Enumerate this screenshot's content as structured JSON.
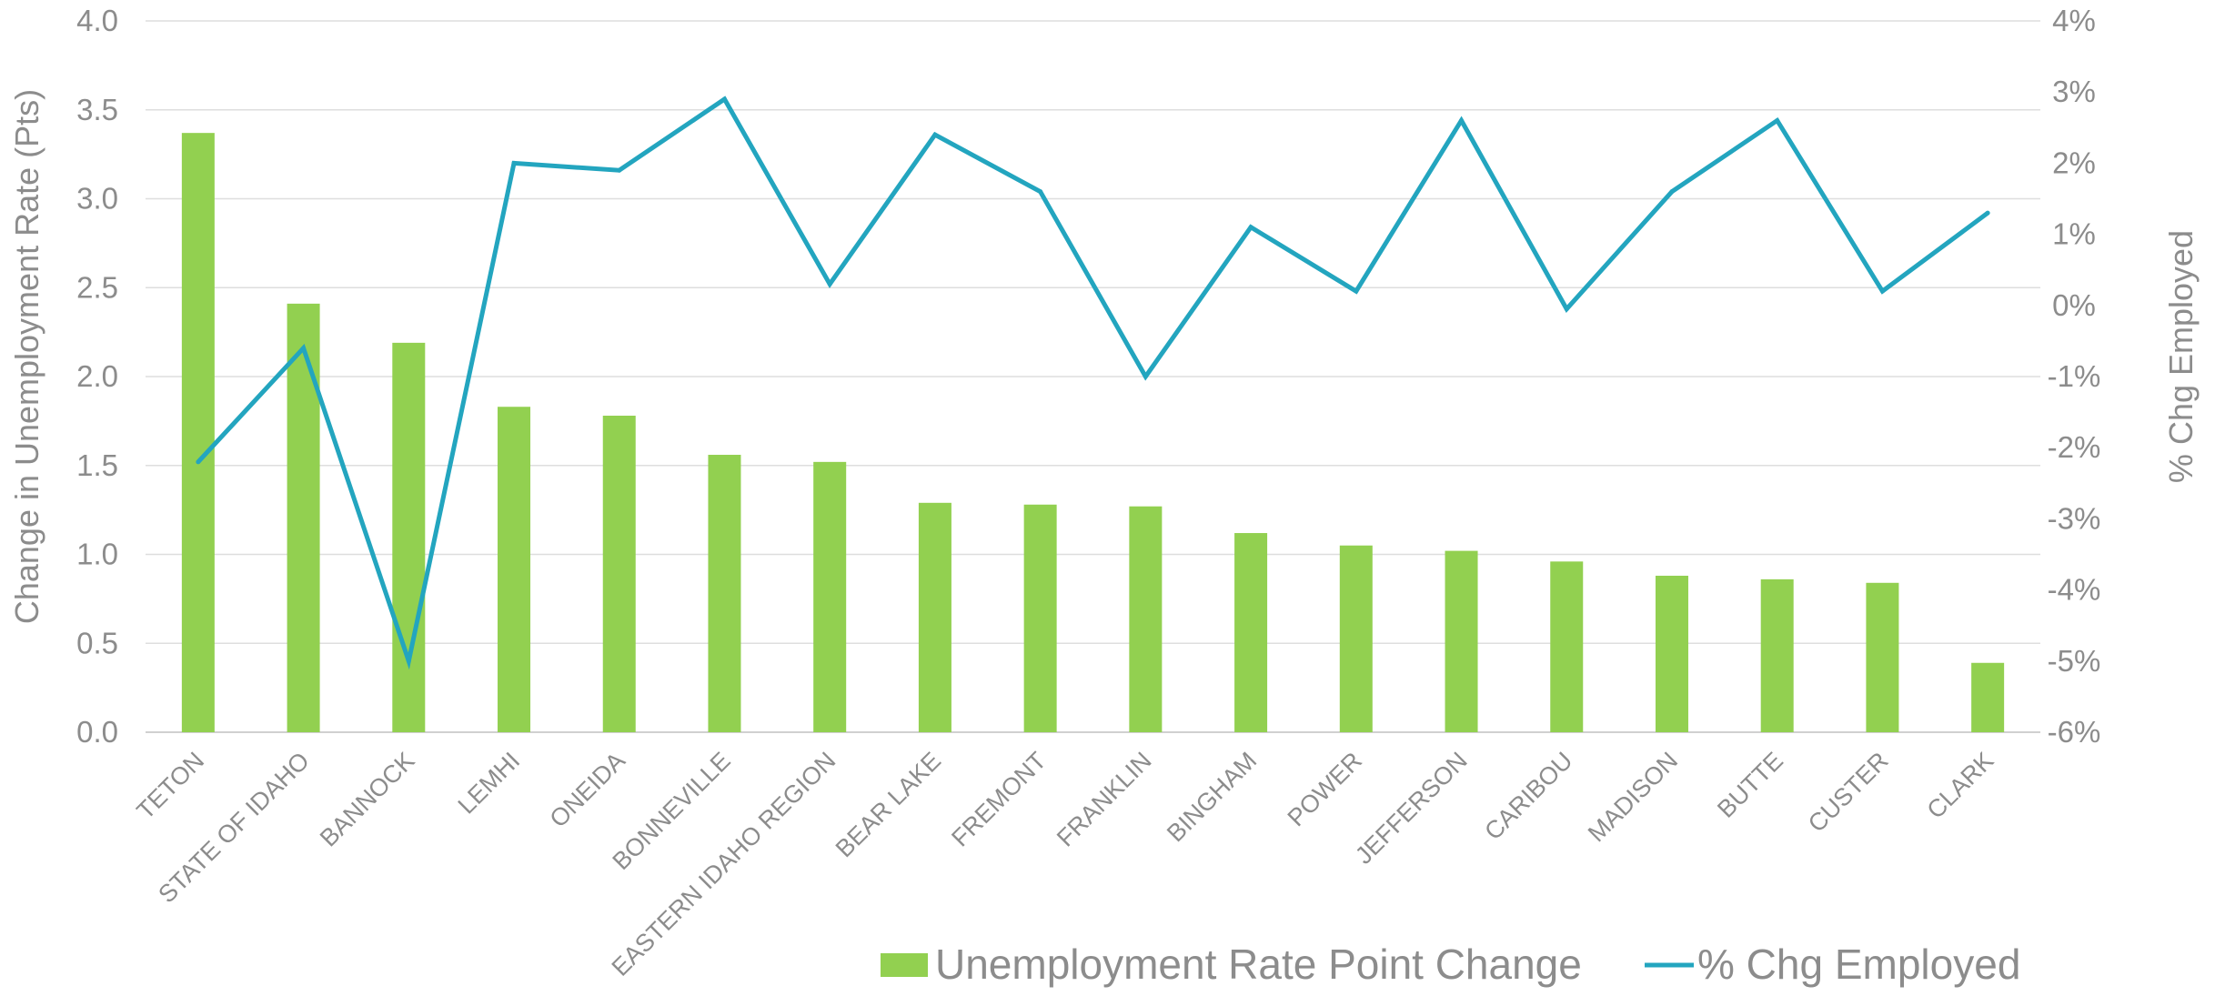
{
  "chart_data": {
    "type": "bar",
    "categories": [
      "TETON",
      "STATE OF IDAHO",
      "BANNOCK",
      "LEMHI",
      "ONEIDA",
      "BONNEVILLE",
      "EASTERN IDAHO REGION",
      "BEAR LAKE",
      "FREMONT",
      "FRANKLIN",
      "BINGHAM",
      "POWER",
      "JEFFERSON",
      "CARIBOU",
      "MADISON",
      "BUTTE",
      "CUSTER",
      "CLARK"
    ],
    "series": [
      {
        "name": "Unemployment Rate Point Change",
        "type": "bar",
        "axis": "left",
        "color": "#92d050",
        "values": [
          3.37,
          2.41,
          2.19,
          1.83,
          1.78,
          1.56,
          1.52,
          1.29,
          1.28,
          1.27,
          1.12,
          1.05,
          1.02,
          0.96,
          0.88,
          0.86,
          0.84,
          0.39
        ]
      },
      {
        "name": "% Chg Employed",
        "type": "line",
        "axis": "right",
        "color": "#23a5bf",
        "values": [
          -2.2,
          -0.6,
          -5.0,
          2.0,
          1.9,
          2.9,
          0.3,
          2.4,
          1.6,
          -1.0,
          1.1,
          0.2,
          2.6,
          -0.05,
          1.6,
          2.6,
          0.2,
          1.3
        ]
      }
    ],
    "ylabel": "Change in Unemployment Rate (Pts)",
    "y2label": "% Chg Employed",
    "ylim": [
      0,
      4
    ],
    "y2lim": [
      -6,
      4
    ],
    "y_ticks": [
      "0.0",
      "0.5",
      "1.0",
      "1.5",
      "2.0",
      "2.5",
      "3.0",
      "3.5",
      "4.0"
    ],
    "y2_ticks": [
      "-6%",
      "-5%",
      "-4%",
      "-3%",
      "-2%",
      "-1%",
      "0%",
      "1%",
      "2%",
      "3%",
      "4%"
    ],
    "grid": true,
    "legend_position": "bottom-right"
  }
}
